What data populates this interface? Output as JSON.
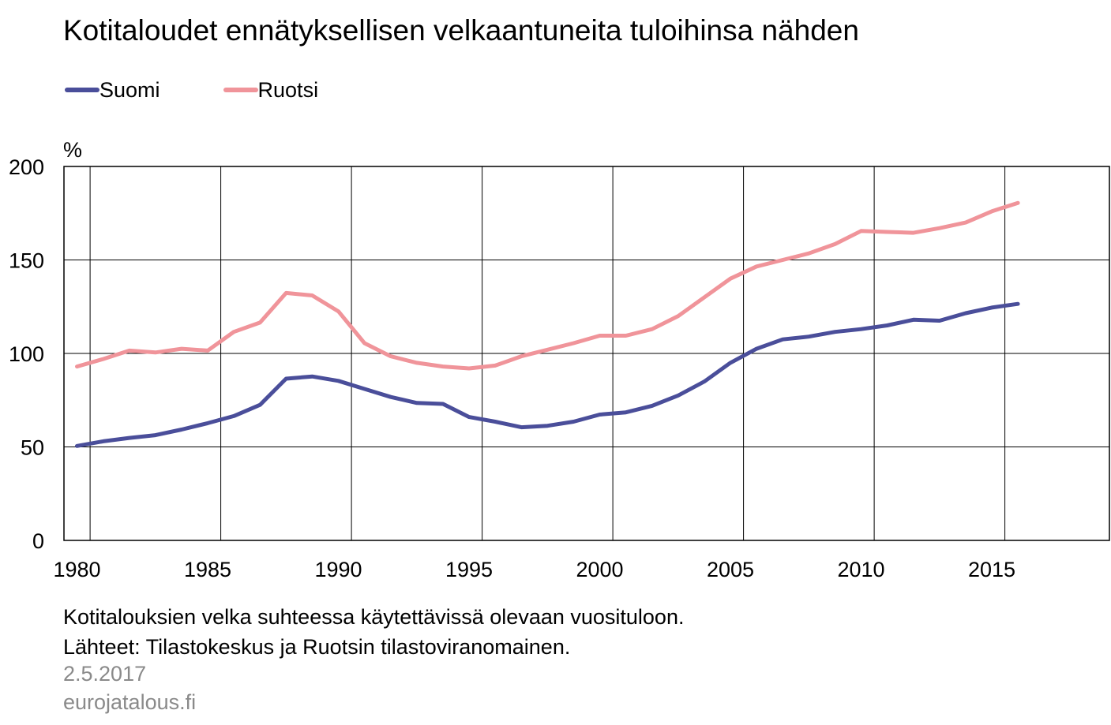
{
  "chart_data": {
    "type": "line",
    "title": "Kotitaloudet ennätyksellisen velkaantuneita tuloihinsa nähden",
    "xlabel": "",
    "ylabel": "%",
    "xlim": [
      1979.5,
      2019.5
    ],
    "ylim": [
      0,
      200
    ],
    "x_ticks": [
      1980,
      1985,
      1990,
      1995,
      2000,
      2005,
      2010,
      2015
    ],
    "y_ticks": [
      0,
      50,
      100,
      150,
      200
    ],
    "grid": true,
    "legend_position": "top-left",
    "x": [
      1980,
      1981,
      1982,
      1983,
      1984,
      1985,
      1986,
      1987,
      1988,
      1989,
      1990,
      1991,
      1992,
      1993,
      1994,
      1995,
      1996,
      1997,
      1998,
      1999,
      2000,
      2001,
      2002,
      2003,
      2004,
      2005,
      2006,
      2007,
      2008,
      2009,
      2010,
      2011,
      2012,
      2013,
      2014,
      2015,
      2016
    ],
    "series": [
      {
        "name": "Suomi",
        "color": "#4a4e9a",
        "values": [
          50.5,
          53,
          54.8,
          56.3,
          59.3,
          62.7,
          66.5,
          72.5,
          86.5,
          87.7,
          85.3,
          81,
          76.7,
          73.5,
          73,
          66,
          63.5,
          60.5,
          61.3,
          63.5,
          67.3,
          68.5,
          72,
          77.5,
          85,
          95,
          102.5,
          107.5,
          109,
          111.5,
          113,
          115,
          118,
          117.5,
          121.5,
          124.5,
          126.5
        ]
      },
      {
        "name": "Ruotsi",
        "color": "#f0949a",
        "values": [
          93,
          97,
          101.5,
          100.5,
          102.5,
          101.5,
          111.5,
          116.5,
          132.3,
          131,
          122.5,
          105.5,
          98.5,
          95,
          93,
          92,
          93.5,
          98.5,
          102,
          105.5,
          109.5,
          109.5,
          113,
          120,
          130,
          140,
          146.5,
          150,
          153.5,
          158.5,
          165.5,
          165,
          164.5,
          167,
          170,
          176,
          180.5
        ]
      }
    ]
  },
  "footer": {
    "note": "Kotitalouksien velka suhteessa käytettävissä olevaan vuosituloon.",
    "source": "Lähteet: Tilastokeskus ja Ruotsin tilastoviranomainen.",
    "date": "2.5.2017",
    "site": "eurojatalous.fi"
  }
}
